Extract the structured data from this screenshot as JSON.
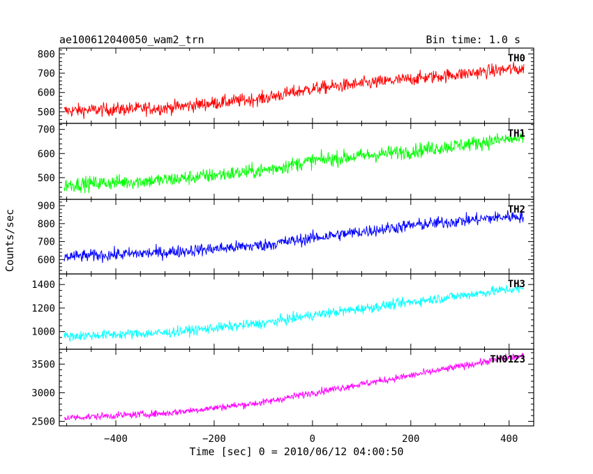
{
  "chart_data": {
    "type": "line",
    "title": "ae100612040050_wam2_trn",
    "subtitle": "Bin time: 1.0 s",
    "xlabel": "Time [sec] 0 = 2010/06/12 04:00:50",
    "ylabel": "Counts/sec",
    "xlim": [
      -515,
      450
    ],
    "x_ticks": [
      -400,
      -200,
      0,
      200,
      400
    ],
    "x_range": [
      -505,
      430
    ],
    "grid": false,
    "legend": "none",
    "series": [
      {
        "name": "TH0",
        "color": "#ff0000",
        "ylim": [
          440,
          830
        ],
        "y_ticks": [
          500,
          600,
          700,
          800
        ],
        "trend": [
          [
            -505,
            505
          ],
          [
            -300,
            520
          ],
          [
            -100,
            570
          ],
          [
            0,
            620
          ],
          [
            200,
            670
          ],
          [
            400,
            720
          ],
          [
            430,
            720
          ]
        ],
        "noise_amp": 45
      },
      {
        "name": "TH1",
        "color": "#00ff00",
        "ylim": [
          410,
          725
        ],
        "y_ticks": [
          500,
          600,
          700
        ],
        "trend": [
          [
            -505,
            470
          ],
          [
            -300,
            490
          ],
          [
            -100,
            530
          ],
          [
            0,
            570
          ],
          [
            200,
            610
          ],
          [
            400,
            660
          ],
          [
            430,
            660
          ]
        ],
        "noise_amp": 40
      },
      {
        "name": "TH2",
        "color": "#0000ff",
        "ylim": [
          520,
          935
        ],
        "y_ticks": [
          600,
          700,
          800,
          900
        ],
        "trend": [
          [
            -505,
            615
          ],
          [
            -300,
            640
          ],
          [
            -100,
            680
          ],
          [
            0,
            720
          ],
          [
            200,
            790
          ],
          [
            400,
            840
          ],
          [
            430,
            840
          ]
        ],
        "noise_amp": 45
      },
      {
        "name": "TH3",
        "color": "#00ffff",
        "ylim": [
          850,
          1490
        ],
        "y_ticks": [
          1000,
          1200,
          1400
        ],
        "trend": [
          [
            -505,
            960
          ],
          [
            -300,
            990
          ],
          [
            -100,
            1070
          ],
          [
            0,
            1140
          ],
          [
            200,
            1250
          ],
          [
            400,
            1360
          ],
          [
            430,
            1360
          ]
        ],
        "noise_amp": 55
      },
      {
        "name": "TH0123",
        "color": "#ff00ff",
        "ylim": [
          2420,
          3760
        ],
        "y_ticks": [
          2500,
          3000,
          3500
        ],
        "trend": [
          [
            -505,
            2560
          ],
          [
            -300,
            2640
          ],
          [
            -100,
            2830
          ],
          [
            0,
            3000
          ],
          [
            200,
            3300
          ],
          [
            400,
            3620
          ],
          [
            430,
            3630
          ]
        ],
        "noise_amp": 80
      }
    ]
  }
}
